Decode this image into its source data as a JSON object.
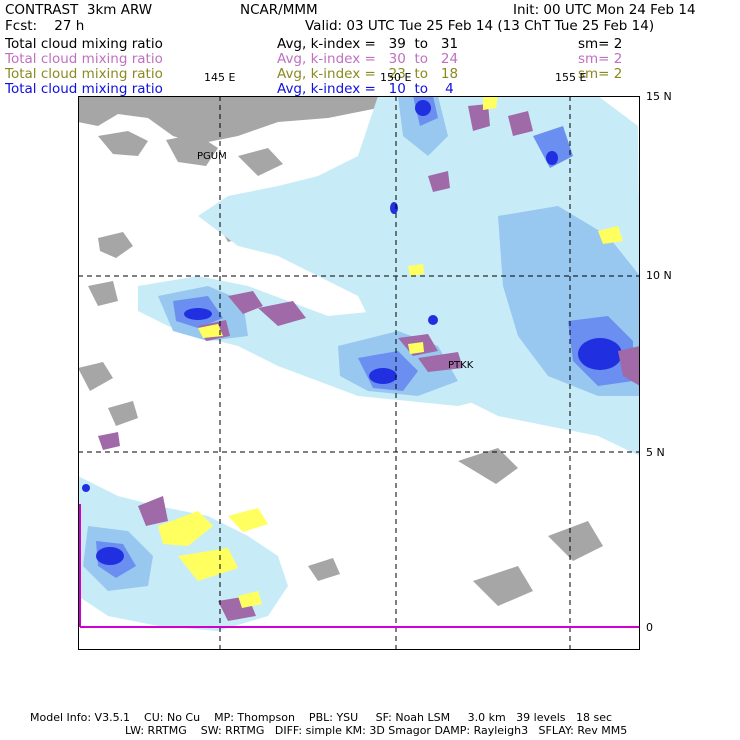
{
  "header": {
    "left_line1": "CONTRAST  3km ARW",
    "center_line1": "NCAR/MMM",
    "right_line1": "Init: 00 UTC Mon 24 Feb 14",
    "left_line2": "Fcst:    27 h",
    "right_line2": "Valid: 03 UTC Tue 25 Feb 14 (13 ChT Tue 25 Feb 14)"
  },
  "fields": [
    {
      "name": "Total cloud mixing ratio",
      "range": "Avg, k-index =   39  to   31",
      "sm": "sm= 2",
      "color": "#000000"
    },
    {
      "name": "Total cloud mixing ratio",
      "range": "Avg, k-index =   30  to   24",
      "sm": "sm= 2",
      "color": "#c070c0"
    },
    {
      "name": "Total cloud mixing ratio",
      "range": "Avg, k-index =   23  to   18",
      "sm": "sm= 2",
      "color": "#8a8a20"
    },
    {
      "name": "Total cloud mixing ratio",
      "range": "Avg, k-index =   10  to    4",
      "sm": "",
      "color": "#1010e0"
    }
  ],
  "map": {
    "lon_labels": [
      "145 E",
      "150 E",
      "155 E"
    ],
    "lat_labels": [
      "15 N",
      "10 N",
      "5 N",
      "0"
    ],
    "stations": [
      "PGUM",
      "PTKK"
    ],
    "colors": {
      "land": "#a6a6a6",
      "cloud_light": "#c8ecf7",
      "cloud_mid": "#98c8f0",
      "cloud_high": "#6a8ff0",
      "cloud_core": "#2030e0",
      "cloud_mid_layer": "#a06aa8",
      "cloud_low_layer": "#ffff60",
      "grid": "#000000",
      "equator_line": "#d000d0"
    }
  },
  "footer": {
    "line1": "Model Info: V3.5.1    CU: No Cu    MP: Thompson    PBL: YSU     SF: Noah LSM     3.0 km   39 levels   18 sec",
    "line2": "LW: RRTMG    SW: RRTMG   DIFF: simple KM: 3D Smagor DAMP: Rayleigh3   SFLAY: Rev MM5"
  }
}
